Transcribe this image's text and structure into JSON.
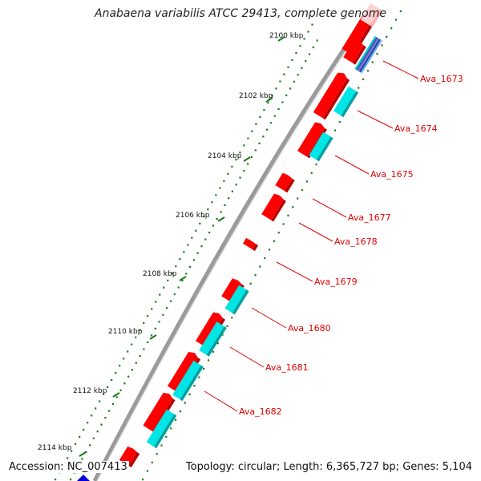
{
  "header": {
    "title": "Anabaena variabilis ATCC 29413, complete genome"
  },
  "footer": {
    "accession": "Accession: NC_007413",
    "topology": "Topology: circular",
    "length": "Length: 6,365,727 bp",
    "genes": "Genes: 5,104"
  },
  "scale_ticks": [
    {
      "label": "2100 kbp"
    },
    {
      "label": "2102 kbp"
    },
    {
      "label": "2104 kbp"
    },
    {
      "label": "2106 kbp"
    },
    {
      "label": "2108 kbp"
    },
    {
      "label": "2110 kbp"
    },
    {
      "label": "2112 kbp"
    },
    {
      "label": "2114 kbp"
    }
  ],
  "gene_labels": [
    {
      "label": "Ava_1673"
    },
    {
      "label": "Ava_1674"
    },
    {
      "label": "Ava_1675"
    },
    {
      "label": "Ava_1677"
    },
    {
      "label": "Ava_1678"
    },
    {
      "label": "Ava_1679"
    },
    {
      "label": "Ava_1680"
    },
    {
      "label": "Ava_1681"
    },
    {
      "label": "Ava_1682"
    }
  ],
  "colors": {
    "cds": "#ff0000",
    "cds_shadow": "#b80000",
    "cds_light": "#ffd0d0",
    "feature": "#00e5e5",
    "feature_shadow": "#00a0a0",
    "gc_skew": "#1a7a1a",
    "backbone": "#888888",
    "label": "#e00000",
    "marker": "#0000dd"
  }
}
